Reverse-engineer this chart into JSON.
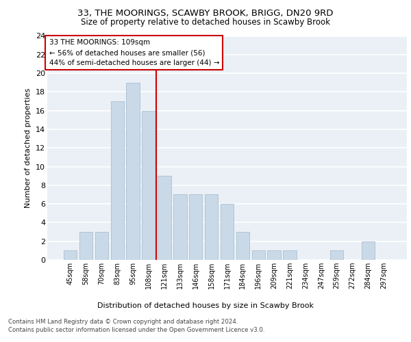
{
  "title1": "33, THE MOORINGS, SCAWBY BROOK, BRIGG, DN20 9RD",
  "title2": "Size of property relative to detached houses in Scawby Brook",
  "xlabel": "Distribution of detached houses by size in Scawby Brook",
  "ylabel": "Number of detached properties",
  "categories": [
    "45sqm",
    "58sqm",
    "70sqm",
    "83sqm",
    "95sqm",
    "108sqm",
    "121sqm",
    "133sqm",
    "146sqm",
    "158sqm",
    "171sqm",
    "184sqm",
    "196sqm",
    "209sqm",
    "221sqm",
    "234sqm",
    "247sqm",
    "259sqm",
    "272sqm",
    "284sqm",
    "297sqm"
  ],
  "values": [
    1,
    3,
    3,
    17,
    19,
    16,
    9,
    7,
    7,
    7,
    6,
    3,
    1,
    1,
    1,
    0,
    0,
    1,
    0,
    2,
    0
  ],
  "bar_color": "#c9d9e8",
  "bar_edge_color": "#a0b8cc",
  "vline_idx": 5,
  "vline_color": "#cc0000",
  "annotation_text": "33 THE MOORINGS: 109sqm\n← 56% of detached houses are smaller (56)\n44% of semi-detached houses are larger (44) →",
  "annotation_box_color": "#ffffff",
  "annotation_box_edge": "#cc0000",
  "ylim": [
    0,
    24
  ],
  "yticks": [
    0,
    2,
    4,
    6,
    8,
    10,
    12,
    14,
    16,
    18,
    20,
    22,
    24
  ],
  "footer1": "Contains HM Land Registry data © Crown copyright and database right 2024.",
  "footer2": "Contains public sector information licensed under the Open Government Licence v3.0.",
  "bg_color": "#eaf0f6",
  "grid_color": "#ffffff"
}
